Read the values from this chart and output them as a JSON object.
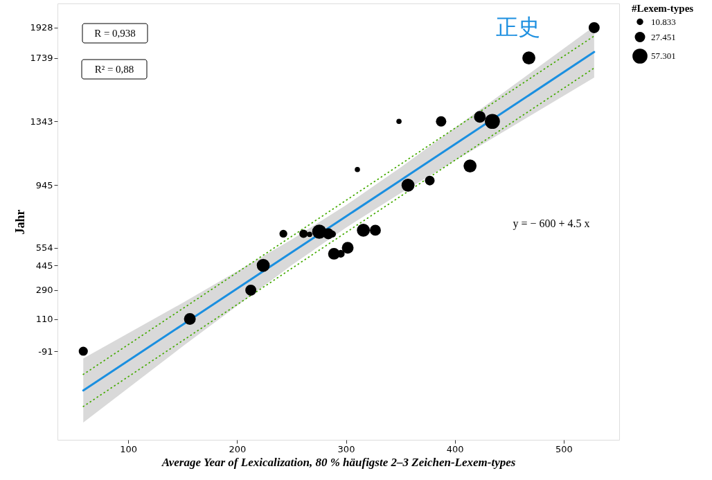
{
  "chart_data": {
    "type": "bubble",
    "xlabel": "Average Year of Lexicalization, 80 % häufigste 2–3 Zeichen-Lexem-types",
    "ylabel": "Jahr",
    "legend_title": "#Lexem-types",
    "annotations": [
      "R = 0,938",
      "R² = 0,88",
      "y = − 600 + 4.5 x",
      "正史"
    ],
    "xlim": [
      35,
      551
    ],
    "xticks": [
      100,
      200,
      300,
      400,
      500
    ],
    "ylim": [
      -644,
      2079
    ],
    "yticks": [
      -91,
      110,
      290,
      445,
      554,
      945,
      1343,
      1739,
      1928
    ],
    "size_legend": [
      10.833,
      27.451,
      57.301
    ],
    "grid": false,
    "series": [
      {
        "type": "line",
        "color": "#1a8fe0",
        "line_style": "solid",
        "x": [
          58.7,
          150,
          250,
          300,
          350,
          450,
          528
        ],
        "values": [
          -336,
          75,
          525,
          750,
          975,
          1425,
          1776
        ],
        "lower": [
          -536,
          -61,
          445,
          680,
          895,
          1300,
          1616
        ],
        "upper": [
          -136,
          211,
          605,
          820,
          1055,
          1550,
          1936
        ]
      },
      {
        "type": "line",
        "color": "#44aa00",
        "line_style": "dotted",
        "x": [
          58.7,
          528
        ],
        "values": [
          -436,
          1676
        ]
      },
      {
        "type": "line",
        "color": "#44aa00",
        "line_style": "dotted",
        "x": [
          58.7,
          528
        ],
        "values": [
          -236,
          1876
        ]
      },
      {
        "color": "#000000",
        "marker": "circle",
        "x": [
          58.7,
          156.6,
          212.6,
          224,
          242.5,
          261,
          266.6,
          275.5,
          283.8,
          287.6,
          289,
          295.2,
          301.6,
          316,
          327,
          348.7,
          310.5,
          357,
          377,
          387.4,
          414,
          423,
          434.5,
          468,
          528
        ],
        "values": [
          -91,
          110,
          290,
          445,
          642,
          642,
          638,
          655,
          642,
          640,
          517,
          517,
          554,
          664,
          664,
          1343,
          1043,
          945,
          974,
          1343,
          1065,
          1371,
          1343,
          1739,
          1928
        ],
        "sizes": [
          21,
          35,
          31,
          43,
          15.5,
          18,
          7,
          52,
          31,
          12,
          35,
          15.5,
          35,
          43,
          31,
          7,
          7,
          43,
          24,
          27.5,
          43,
          35,
          57.301,
          43,
          31
        ]
      }
    ]
  }
}
